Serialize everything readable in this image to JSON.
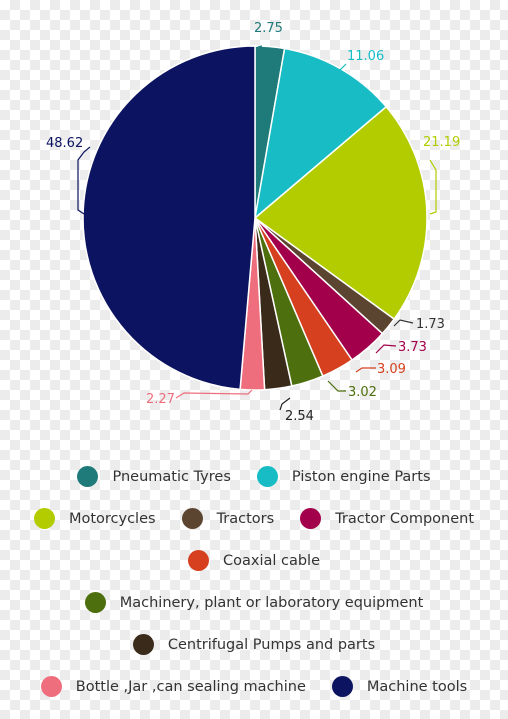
{
  "chart_data": {
    "type": "pie",
    "slices": [
      {
        "label": "Pneumatic Tyres",
        "value": 2.75,
        "value_label": "2.75",
        "color": "#1f7a7a"
      },
      {
        "label": "Piston engine Parts",
        "value": 11.06,
        "value_label": "11.06",
        "color": "#17bcc4"
      },
      {
        "label": "Motorcycles",
        "value": 21.19,
        "value_label": "21.19",
        "color": "#b2cc00"
      },
      {
        "label": "Tractors",
        "value": 1.73,
        "value_label": "1.73",
        "color": "#5b4530"
      },
      {
        "label": "Tractor Component",
        "value": 3.73,
        "value_label": "3.73",
        "color": "#a3004c"
      },
      {
        "label": "Coaxial cable",
        "value": 3.09,
        "value_label": "3.09",
        "color": "#d6401f"
      },
      {
        "label": "Machinery, plant or laboratory equipment",
        "value": 3.02,
        "value_label": "3.02",
        "color": "#4d6f0d"
      },
      {
        "label": "Centrifugal Pumps and parts",
        "value": 2.54,
        "value_label": "2.54",
        "color": "#3a2a1a"
      },
      {
        "label": "Bottle ,Jar ,can sealing machine",
        "value": 2.27,
        "value_label": "2.27",
        "color": "#ef6e7e"
      },
      {
        "label": "Machine tools",
        "value": 48.62,
        "value_label": "48.62",
        "color": "#0c1360"
      }
    ],
    "legend_position": "bottom",
    "label_colors": {
      "2.75": "#1f7a7a",
      "11.06": "#17bcc4",
      "21.19": "#b2cc00",
      "1.73": "#333333",
      "3.73": "#a3004c",
      "3.09": "#d6401f",
      "3.02": "#4d6f0d",
      "2.54": "#222222",
      "2.27": "#ef6e7e",
      "48.62": "#0c1360"
    }
  }
}
